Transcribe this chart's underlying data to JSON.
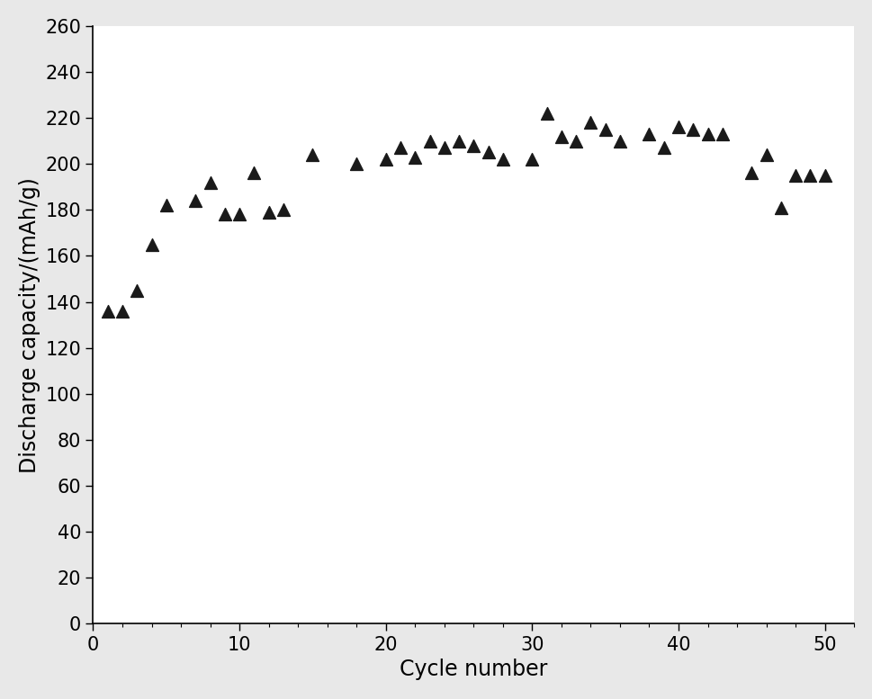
{
  "x": [
    1,
    2,
    3,
    4,
    5,
    7,
    8,
    9,
    10,
    11,
    12,
    13,
    15,
    18,
    20,
    21,
    22,
    23,
    24,
    25,
    26,
    27,
    28,
    30,
    31,
    32,
    33,
    34,
    35,
    36,
    38,
    39,
    40,
    41,
    42,
    43,
    45,
    46,
    47,
    48,
    49,
    50
  ],
  "y": [
    136,
    136,
    145,
    165,
    182,
    184,
    192,
    178,
    178,
    196,
    179,
    180,
    204,
    200,
    202,
    207,
    203,
    210,
    207,
    210,
    208,
    205,
    202,
    202,
    222,
    212,
    210,
    218,
    215,
    210,
    213,
    207,
    216,
    215,
    213,
    213,
    196,
    204,
    181,
    195,
    195,
    195
  ],
  "xlabel": "Cycle number",
  "ylabel": "Discharge capacity/(mAh/g)",
  "xlim": [
    0,
    52
  ],
  "ylim": [
    0,
    260
  ],
  "xticks": [
    0,
    10,
    20,
    30,
    40,
    50
  ],
  "yticks": [
    0,
    20,
    40,
    60,
    80,
    100,
    120,
    140,
    160,
    180,
    200,
    220,
    240,
    260
  ],
  "marker_color": "#1a1a1a",
  "marker_size": 100,
  "background_color": "#ffffff",
  "outer_background": "#e8e8e8",
  "xlabel_fontsize": 17,
  "ylabel_fontsize": 17,
  "tick_fontsize": 15
}
